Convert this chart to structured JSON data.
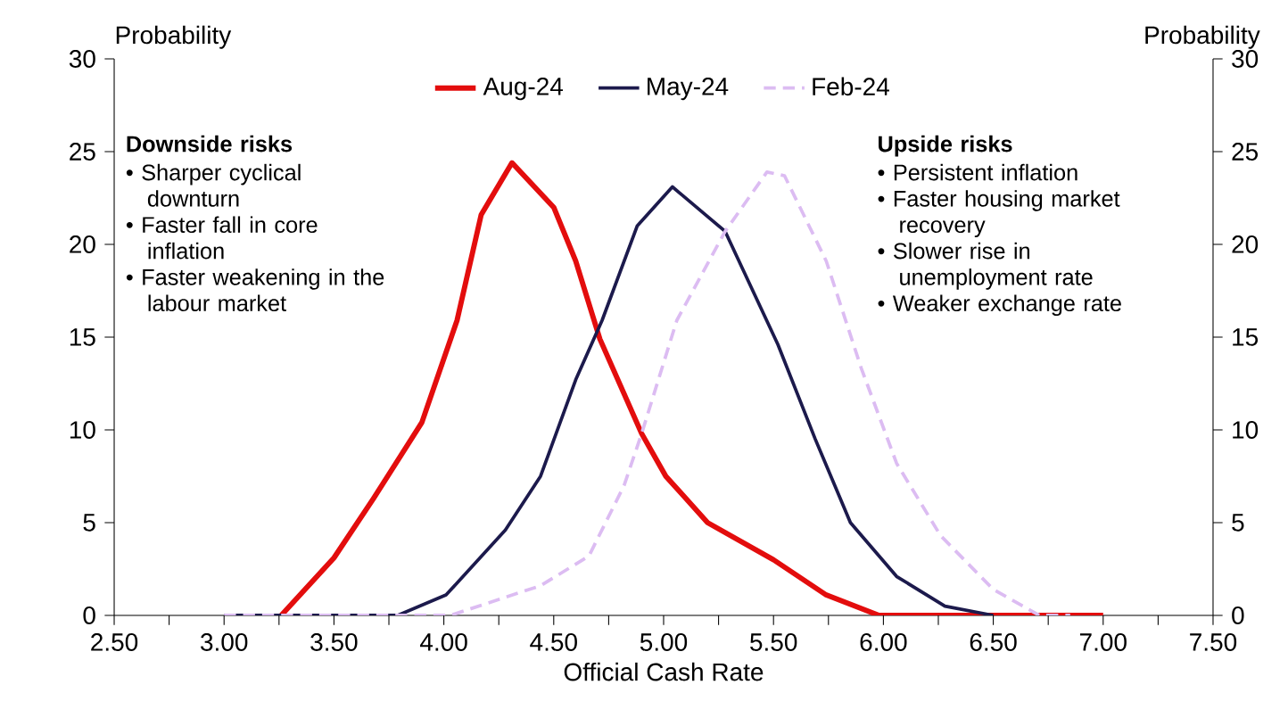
{
  "chart_data": {
    "type": "line",
    "xlabel": "Official Cash Rate",
    "ylabel": "Probability",
    "y2label": "Probability",
    "series": [
      {
        "name": "Aug-24",
        "color": "#e30d0d",
        "line_style": "solid",
        "x": [
          3.26,
          3.5,
          3.68,
          3.9,
          4.06,
          4.17,
          4.31,
          4.5,
          4.6,
          4.71,
          4.9,
          5.01,
          5.2,
          5.5,
          5.74,
          5.98,
          7.0
        ],
        "values": [
          0,
          3.1,
          6.3,
          10.4,
          15.9,
          21.6,
          24.4,
          22,
          19.1,
          14.9,
          9.8,
          7.5,
          5,
          3,
          1.1,
          0,
          0
        ]
      },
      {
        "name": "May-24",
        "color": "#1c1a4c",
        "line_style": "solid",
        "x": [
          3.0,
          3.79,
          4.01,
          4.28,
          4.44,
          4.6,
          4.72,
          4.88,
          5.04,
          5.28,
          5.52,
          5.69,
          5.85,
          6.06,
          6.28,
          6.5
        ],
        "values": [
          0,
          0,
          1.1,
          4.6,
          7.5,
          12.7,
          15.9,
          21,
          23.1,
          20.7,
          14.6,
          9.5,
          5,
          2.1,
          0.5,
          0
        ]
      },
      {
        "name": "Feb-24",
        "color": "#dcbcf2",
        "line_style": "dashed",
        "x": [
          3.0,
          4.03,
          4.44,
          4.66,
          4.82,
          4.9,
          5.06,
          5.28,
          5.47,
          5.55,
          5.74,
          5.9,
          6.06,
          6.26,
          6.5,
          6.71,
          6.85
        ],
        "values": [
          0,
          0,
          1.6,
          3.2,
          7,
          9.8,
          15.9,
          20.7,
          23.9,
          23.7,
          19.1,
          13.3,
          8.2,
          4.3,
          1.4,
          0,
          0
        ]
      }
    ],
    "xlim": [
      2.5,
      7.5
    ],
    "xticks": [
      {
        "value": 2.5,
        "label": "2.50"
      },
      {
        "value": 2.75,
        "label": null
      },
      {
        "value": 3.0,
        "label": "3.00"
      },
      {
        "value": 3.25,
        "label": null
      },
      {
        "value": 3.5,
        "label": "3.50"
      },
      {
        "value": 3.75,
        "label": null
      },
      {
        "value": 4.0,
        "label": "4.00"
      },
      {
        "value": 4.25,
        "label": null
      },
      {
        "value": 4.5,
        "label": "4.50"
      },
      {
        "value": 4.75,
        "label": null
      },
      {
        "value": 5.0,
        "label": "5.00"
      },
      {
        "value": 5.25,
        "label": null
      },
      {
        "value": 5.5,
        "label": "5.50"
      },
      {
        "value": 5.75,
        "label": null
      },
      {
        "value": 6.0,
        "label": "6.00"
      },
      {
        "value": 6.25,
        "label": null
      },
      {
        "value": 6.5,
        "label": "6.50"
      },
      {
        "value": 6.75,
        "label": null
      },
      {
        "value": 7.0,
        "label": "7.00"
      },
      {
        "value": 7.25,
        "label": null
      },
      {
        "value": 7.5,
        "label": "7.50"
      }
    ],
    "ylim": [
      0,
      30
    ],
    "yticks": [
      0,
      5,
      10,
      15,
      20,
      25,
      30
    ],
    "y2lim": [
      0,
      30
    ],
    "y2ticks": [
      0,
      5,
      10,
      15,
      20,
      25,
      30
    ],
    "grid": false,
    "legend": "top",
    "marker": "none",
    "annotations": [
      "Downside risks",
      "• Sharper cyclical downturn",
      "• Faster fall in core inflation",
      "• Faster weakening in the labour market",
      "Upside risks",
      "• Persistent inflation",
      "• Faster housing market recovery",
      "• Slower rise in unemployment rate",
      "• Weaker exchange rate"
    ]
  }
}
